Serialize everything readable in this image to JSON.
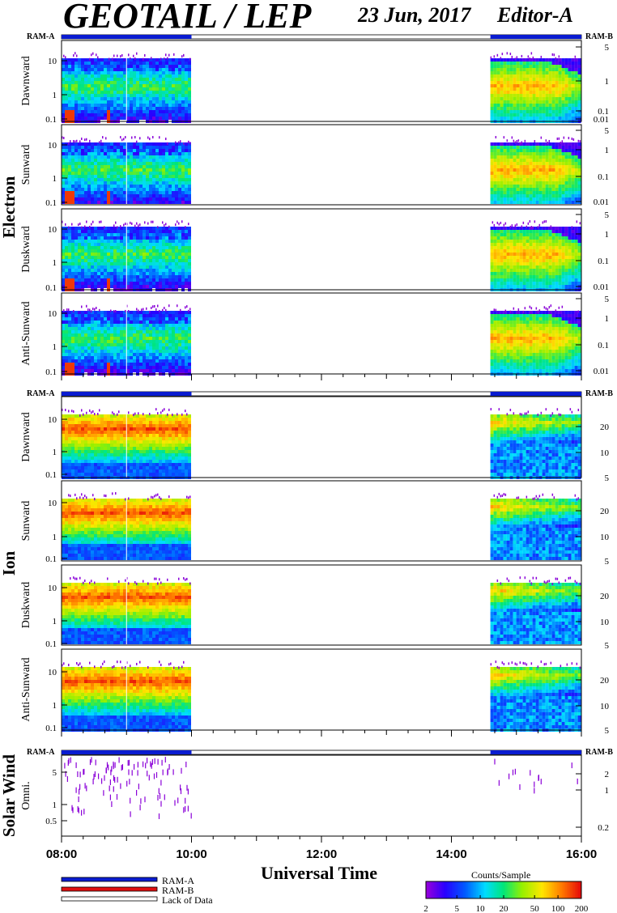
{
  "header": {
    "title": "GEOTAIL / LEP",
    "date": "23 Jun, 2017",
    "editor": "Editor-A"
  },
  "colors": {
    "ram_a": "#0a1cd0",
    "ram_b": "#e01010",
    "lack_of_data": "#ffffff"
  },
  "legend": {
    "items": [
      {
        "label": "RAM-A",
        "color": "#0a1cd0"
      },
      {
        "label": "RAM-B",
        "color": "#e01010"
      },
      {
        "label": "Lack of Data",
        "color": "#ffffff"
      }
    ]
  },
  "colorbar": {
    "title": "Counts/Sample",
    "ticks": [
      "2",
      "5",
      "10",
      "20",
      "50",
      "100",
      "200"
    ],
    "range": [
      2,
      200
    ],
    "scale": "log"
  },
  "chart_data": {
    "type": "heatmap",
    "title": "GEOTAIL / LEP",
    "xlabel": "Universal Time",
    "x_ticks": [
      "08:00",
      "10:00",
      "12:00",
      "14:00",
      "16:00"
    ],
    "x_range": [
      "08:00",
      "16:00"
    ],
    "data_intervals": [
      [
        "08:00",
        "10:00"
      ],
      [
        "14:36",
        "16:00"
      ]
    ],
    "groups": [
      {
        "name": "Electron",
        "ram_left": "RAM-A",
        "ram_right": "RAM-B",
        "left_ticks": [
          "10",
          "1",
          "0.1"
        ],
        "right_ticks": [
          "5",
          "1",
          "0.1",
          "0.01"
        ],
        "panels": [
          {
            "label": "Dawnward"
          },
          {
            "label": "Sunward"
          },
          {
            "label": "Duskward"
          },
          {
            "label": "Anti-Sunward"
          }
        ]
      },
      {
        "name": "Ion",
        "ram_left": "RAM-A",
        "ram_right": "RAM-B",
        "left_ticks": [
          "10",
          "1",
          "0.1"
        ],
        "right_ticks": [
          "20",
          "10",
          "5"
        ],
        "panels": [
          {
            "label": "Dawnward"
          },
          {
            "label": "Sunward"
          },
          {
            "label": "Duskward"
          },
          {
            "label": "Anti-Sunward"
          }
        ]
      },
      {
        "name": "Solar Wind",
        "ram_left": "RAM-A",
        "ram_right": "RAM-B",
        "left_ticks": [
          "5",
          "1",
          "0.5"
        ],
        "right_ticks": [
          "2",
          "1",
          "0.2"
        ],
        "panels": [
          {
            "label": "Omni."
          }
        ]
      }
    ]
  }
}
